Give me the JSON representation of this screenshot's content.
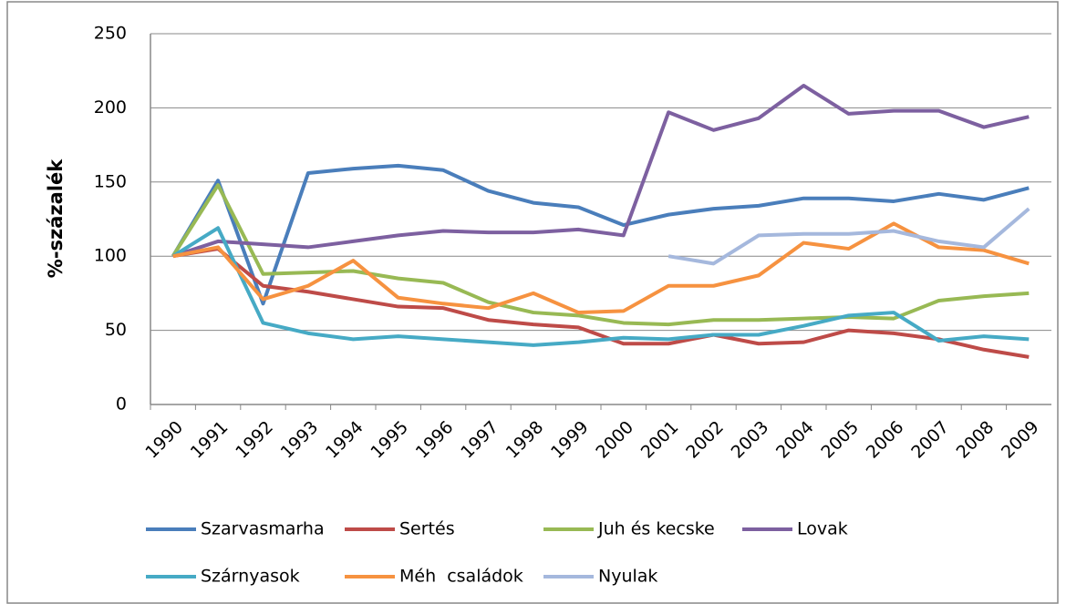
{
  "chart_data": {
    "type": "line",
    "ylabel": "%-százalék",
    "categories": [
      "1990",
      "1991",
      "1992",
      "1993",
      "1994",
      "1995",
      "1996",
      "1997",
      "1998",
      "1999",
      "2000",
      "2001",
      "2002",
      "2003",
      "2004",
      "2005",
      "2006",
      "2007",
      "2008",
      "2009"
    ],
    "ylim": [
      0,
      250
    ],
    "yticks": [
      0,
      50,
      100,
      150,
      200,
      250
    ],
    "grid": true,
    "legend": "bottom",
    "series": [
      {
        "name": "Szarvasmarha",
        "color": "#4a7ebb",
        "values": [
          100,
          151,
          68,
          156,
          159,
          161,
          158,
          144,
          136,
          133,
          121,
          128,
          132,
          134,
          139,
          139,
          137,
          142,
          138,
          146
        ]
      },
      {
        "name": "Sertés",
        "color": "#be4b48",
        "values": [
          100,
          105,
          80,
          76,
          71,
          66,
          65,
          57,
          54,
          52,
          41,
          41,
          47,
          41,
          42,
          50,
          48,
          44,
          37,
          32
        ]
      },
      {
        "name": "Juh és kecske",
        "color": "#98b954",
        "values": [
          100,
          148,
          88,
          89,
          90,
          85,
          82,
          69,
          62,
          60,
          55,
          54,
          57,
          57,
          58,
          59,
          58,
          70,
          73,
          75
        ]
      },
      {
        "name": "Lovak",
        "color": "#7d60a0",
        "values": [
          100,
          110,
          108,
          106,
          110,
          114,
          117,
          116,
          116,
          118,
          114,
          197,
          185,
          193,
          215,
          196,
          198,
          198,
          187,
          194
        ]
      },
      {
        "name": "Szárnyasok",
        "color": "#46aac5",
        "values": [
          100,
          119,
          55,
          48,
          44,
          46,
          44,
          42,
          40,
          42,
          45,
          44,
          47,
          47,
          53,
          60,
          62,
          43,
          46,
          44
        ]
      },
      {
        "name": "Méh  családok",
        "color": "#f69240",
        "values": [
          100,
          106,
          71,
          80,
          97,
          72,
          68,
          65,
          75,
          62,
          63,
          80,
          80,
          87,
          109,
          105,
          122,
          106,
          104,
          95
        ]
      },
      {
        "name": "Nyulak",
        "color": "#a5b8dd",
        "values": [
          null,
          null,
          null,
          null,
          null,
          null,
          null,
          null,
          null,
          null,
          null,
          100,
          95,
          114,
          115,
          115,
          117,
          110,
          106,
          132
        ]
      }
    ]
  }
}
